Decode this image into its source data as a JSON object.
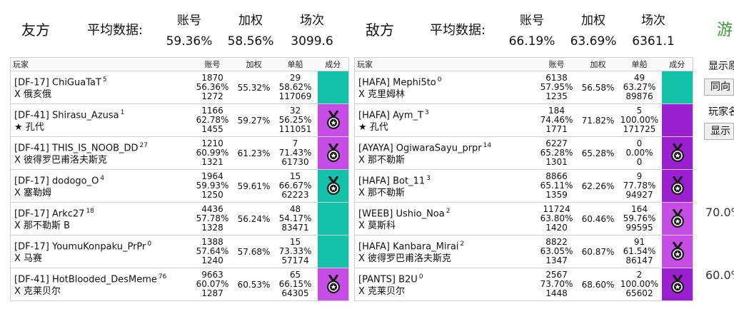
{
  "friendly": {
    "title": "友方",
    "avg_label": "平均数据:",
    "headers": {
      "account": "账号",
      "weighted": "加权",
      "battles": "场次"
    },
    "values": {
      "account": "59.36%",
      "weighted": "58.56%",
      "battles": "3099.6"
    },
    "columns": {
      "player": "玩家",
      "account": "账号",
      "weighted": "加权",
      "ship": "单船",
      "rating": "成分"
    },
    "players": [
      {
        "name": "[DF-17] ChiGuaTaT",
        "sup": "5",
        "ship": "X 俄亥俄",
        "acc1": "1870",
        "acc2": "56.36%",
        "acc3": "1272",
        "weighted": "55.32%",
        "s1": "29",
        "s2": "58.62%",
        "s3": "117069",
        "badge_color": "#12c1a8",
        "medal": false
      },
      {
        "name": "[DF-41] Shirasu_Azusa",
        "sup": "1",
        "ship": "★ 孔代",
        "acc1": "1166",
        "acc2": "62.78%",
        "acc3": "1455",
        "weighted": "59.27%",
        "s1": "32",
        "s2": "56.25%",
        "s3": "111051",
        "badge_color": "#c64de6",
        "medal": true
      },
      {
        "name": "[DF-41] THIS_IS_NOOB_DD",
        "sup": "27",
        "ship": "X 彼得罗巴甫洛夫斯克",
        "acc1": "1210",
        "acc2": "60.99%",
        "acc3": "1321",
        "weighted": "61.23%",
        "s1": "7",
        "s2": "71.43%",
        "s3": "61730",
        "badge_color": "#c64de6",
        "medal": true
      },
      {
        "name": "[DF-17] dodogo_O",
        "sup": "4",
        "ship": "X 塞勒姆",
        "acc1": "1964",
        "acc2": "59.93%",
        "acc3": "1250",
        "weighted": "59.61%",
        "s1": "15",
        "s2": "66.67%",
        "s3": "62223",
        "badge_color": "#12c1a8",
        "medal": true
      },
      {
        "name": "[DF-17] Arkc27",
        "sup": "18",
        "ship": "X 那不勒斯 B",
        "acc1": "4436",
        "acc2": "57.78%",
        "acc3": "1328",
        "weighted": "56.24%",
        "s1": "48",
        "s2": "54.17%",
        "s3": "83471",
        "badge_color": "#12c1a8",
        "medal": false
      },
      {
        "name": "[DF-17] YoumuKonpaku_PrPr",
        "sup": "0",
        "ship": "X 马赛",
        "acc1": "1388",
        "acc2": "57.64%",
        "acc3": "1240",
        "weighted": "57.68%",
        "s1": "15",
        "s2": "73.33%",
        "s3": "57174",
        "badge_color": "#12c1a8",
        "medal": false
      },
      {
        "name": "[DF-41] HotBlooded_DesMeme",
        "sup": "76",
        "ship": "X 克莱贝尔",
        "acc1": "9663",
        "acc2": "60.07%",
        "acc3": "1287",
        "weighted": "60.53%",
        "s1": "65",
        "s2": "66.15%",
        "s3": "64305",
        "badge_color": "#c64de6",
        "medal": true
      }
    ]
  },
  "enemy": {
    "title": "敌方",
    "avg_label": "平均数据:",
    "headers": {
      "account": "账号",
      "weighted": "加权",
      "battles": "场次"
    },
    "values": {
      "account": "66.19%",
      "weighted": "63.69%",
      "battles": "6361.1"
    },
    "columns": {
      "player": "玩家",
      "account": "账号",
      "weighted": "加权",
      "ship": "单船",
      "rating": "成分"
    },
    "players": [
      {
        "name": "[HAFA] Mephi5to",
        "sup": "0",
        "ship": "X 克里姆林",
        "acc1": "6138",
        "acc2": "57.95%",
        "acc3": "1235",
        "weighted": "56.58%",
        "s1": "49",
        "s2": "63.27%",
        "s3": "89876",
        "badge_color": "#12c1a8",
        "medal": false
      },
      {
        "name": "[HAFA] Aym_T",
        "sup": "3",
        "ship": "★ 孔代",
        "acc1": "184",
        "acc2": "74.46%",
        "acc3": "1771",
        "weighted": "71.82%",
        "s1": "5",
        "s2": "100.00%",
        "s3": "171725",
        "badge_color": "#9b1fd1",
        "medal": false
      },
      {
        "name": "[AYAYA] OgiwaraSayu_prpr",
        "sup": "14",
        "ship": "X 那不勒斯",
        "acc1": "6227",
        "acc2": "65.28%",
        "acc3": "1301",
        "weighted": "65.28%",
        "s1": "0",
        "s2": "0.00%",
        "s3": "0",
        "badge_color": "#9b1fd1",
        "medal": true
      },
      {
        "name": "[HAFA] Bot_11",
        "sup": "3",
        "ship": "X 那不勒斯",
        "acc1": "8866",
        "acc2": "65.11%",
        "acc3": "1359",
        "weighted": "62.26%",
        "s1": "9",
        "s2": "77.78%",
        "s3": "94927",
        "badge_color": "#9b1fd1",
        "medal": true
      },
      {
        "name": "[WEEB] Ushio_Noa",
        "sup": "2",
        "ship": "X 莫斯科",
        "acc1": "11724",
        "acc2": "63.80%",
        "acc3": "1420",
        "weighted": "60.46%",
        "s1": "164",
        "s2": "59.76%",
        "s3": "99595",
        "badge_color": "#c64de6",
        "medal": true
      },
      {
        "name": "[HAFA] Kanbara_Mirai",
        "sup": "2",
        "ship": "X 彼得罗巴甫洛夫斯克",
        "acc1": "8822",
        "acc2": "63.05%",
        "acc3": "1347",
        "weighted": "60.87%",
        "s1": "91",
        "s2": "61.54%",
        "s3": "86147",
        "badge_color": "#c64de6",
        "medal": true
      },
      {
        "name": "[PANTS] B2U",
        "sup": "0",
        "ship": "X 克莱贝尔",
        "acc1": "2567",
        "acc2": "73.70%",
        "acc3": "1448",
        "weighted": "68.60%",
        "s1": "2",
        "s2": "100.00%",
        "s3": "65602",
        "badge_color": "#9b1fd1",
        "medal": true
      }
    ]
  },
  "side_panel": {
    "cut_title": "游",
    "label1": "显示原",
    "button1": "同向",
    "label2": "玩家名",
    "button2": "显示",
    "pct1": "70.0%",
    "pct2": "60.0%"
  }
}
